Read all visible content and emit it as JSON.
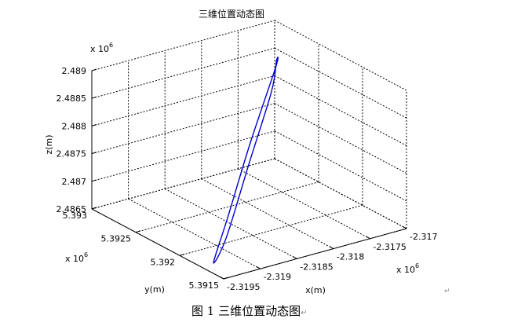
{
  "chart_data": {
    "type": "line3d",
    "title": "三维位置动态图",
    "xlabel": "x(m)",
    "ylabel": "y(m)",
    "zlabel": "z(m)",
    "x_multiplier": "x 10",
    "y_multiplier": "x 10",
    "z_multiplier": "x 10",
    "exponent": "6",
    "xlim": [
      -2.3195,
      -2.317
    ],
    "ylim": [
      5.3915,
      5.393
    ],
    "zlim": [
      2.4865,
      2.489
    ],
    "x_ticks": [
      "-2.3195",
      "-2.319",
      "-2.3185",
      "-2.318",
      "-2.3175",
      "-2.317"
    ],
    "y_ticks": [
      "5.3915",
      "5.392",
      "5.3925",
      "5.393"
    ],
    "z_ticks": [
      "2.4865",
      "2.487",
      "2.4875",
      "2.488",
      "2.4885",
      "2.489"
    ],
    "grid": true,
    "line_color": "#0000cc",
    "series": [
      {
        "x": [
          -2.31725,
          -2.31802,
          -2.31878,
          -2.31935,
          -2.31908,
          -2.31832,
          -2.31755,
          -2.31718,
          -2.31725
        ],
        "y": [
          5.39278,
          5.39243,
          5.39205,
          5.39174,
          5.39182,
          5.3922,
          5.39258,
          5.39283,
          5.39278
        ],
        "z": [
          2.48843,
          2.48763,
          2.4869,
          2.48654,
          2.48682,
          2.48753,
          2.48826,
          2.48848,
          2.48843
        ]
      }
    ]
  },
  "caption": {
    "text": "图 1  三维位置动态图",
    "mark": "↵"
  },
  "page_mark": "↵"
}
